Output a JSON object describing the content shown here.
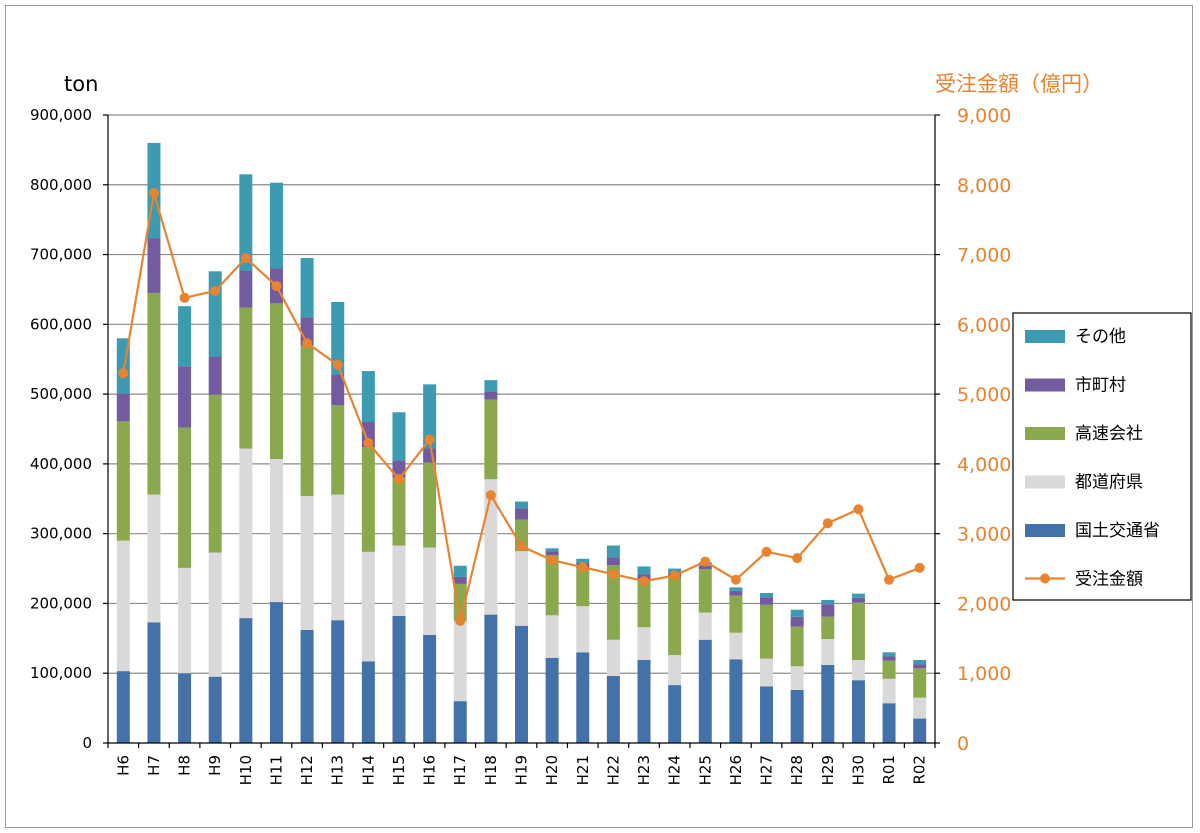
{
  "chart_data": {
    "type": "bar",
    "stacked": true,
    "categories": [
      "H6",
      "H7",
      "H8",
      "H9",
      "H10",
      "H11",
      "H12",
      "H13",
      "H14",
      "H15",
      "H16",
      "H17",
      "H18",
      "H19",
      "H20",
      "H21",
      "H22",
      "H23",
      "H24",
      "H25",
      "H26",
      "H27",
      "H28",
      "H29",
      "H30",
      "R01",
      "R02"
    ],
    "y_left_label": "ton",
    "y_right_label": "受注金額（億円）",
    "ylim_left": [
      0,
      900000
    ],
    "ylim_right": [
      0,
      9000
    ],
    "y_left_ticks": [
      "0",
      "100,000",
      "200,000",
      "300,000",
      "400,000",
      "500,000",
      "600,000",
      "700,000",
      "800,000",
      "900,000"
    ],
    "y_right_ticks": [
      "0",
      "1,000",
      "2,000",
      "3,000",
      "4,000",
      "5,000",
      "6,000",
      "7,000",
      "8,000",
      "9,000"
    ],
    "grid": true,
    "legend_position": "right",
    "series": [
      {
        "name": "国土交通省",
        "color": "#4472a8",
        "axis": "left",
        "values": [
          103000,
          173000,
          100000,
          95000,
          179000,
          202000,
          162000,
          176000,
          117000,
          182000,
          155000,
          60000,
          184000,
          168000,
          122000,
          130000,
          96000,
          119000,
          83000,
          148000,
          120000,
          81000,
          76000,
          112000,
          90000,
          57000,
          35000
        ]
      },
      {
        "name": "都道府県",
        "color": "#d9d9d9",
        "axis": "left",
        "values": [
          187000,
          183000,
          151000,
          178000,
          243000,
          205000,
          192000,
          180000,
          157000,
          101000,
          125000,
          115000,
          194000,
          107000,
          61000,
          66000,
          52000,
          47000,
          43000,
          39000,
          38000,
          40000,
          34000,
          37000,
          29000,
          35000,
          30000
        ]
      },
      {
        "name": "高速会社",
        "color": "#8aa84e",
        "axis": "left",
        "values": [
          171000,
          289000,
          201000,
          226000,
          202000,
          223000,
          216000,
          128000,
          150000,
          97000,
          122000,
          53000,
          114000,
          45000,
          86000,
          55000,
          107000,
          68000,
          112000,
          62000,
          53000,
          77000,
          57000,
          32000,
          82000,
          26000,
          42000
        ]
      },
      {
        "name": "市町村",
        "color": "#735b9f",
        "axis": "left",
        "values": [
          40000,
          78000,
          88000,
          55000,
          53000,
          50000,
          40000,
          44000,
          36000,
          25000,
          20000,
          10000,
          12000,
          16000,
          6000,
          7000,
          11000,
          8000,
          6000,
          5000,
          7000,
          11000,
          14000,
          18000,
          7000,
          6000,
          6000
        ]
      },
      {
        "name": "その他",
        "color": "#3c9bb0",
        "axis": "left",
        "values": [
          79000,
          137000,
          86000,
          122000,
          138000,
          123000,
          85000,
          104000,
          73000,
          69000,
          92000,
          16000,
          16000,
          10000,
          4000,
          6000,
          17000,
          11000,
          6000,
          5000,
          5000,
          6000,
          10000,
          6000,
          6000,
          6000,
          6000
        ]
      }
    ],
    "line_series": {
      "name": "受注金額",
      "color": "#e8832f",
      "axis": "right",
      "values": [
        5300,
        7880,
        6380,
        6480,
        6950,
        6550,
        5730,
        5420,
        4300,
        3780,
        4350,
        1750,
        3550,
        2820,
        2620,
        2520,
        2420,
        2320,
        2400,
        2600,
        2340,
        2740,
        2650,
        3150,
        3350,
        2340,
        2510
      ]
    }
  }
}
